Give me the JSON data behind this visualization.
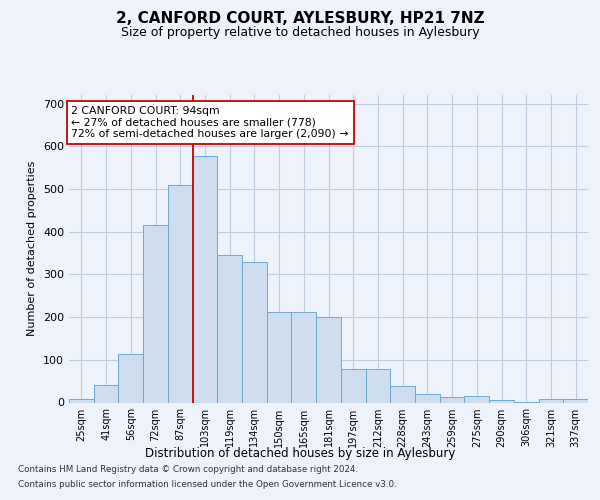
{
  "title_line1": "2, CANFORD COURT, AYLESBURY, HP21 7NZ",
  "title_line2": "Size of property relative to detached houses in Aylesbury",
  "xlabel": "Distribution of detached houses by size in Aylesbury",
  "ylabel": "Number of detached properties",
  "categories": [
    "25sqm",
    "41sqm",
    "56sqm",
    "72sqm",
    "87sqm",
    "103sqm",
    "119sqm",
    "134sqm",
    "150sqm",
    "165sqm",
    "181sqm",
    "197sqm",
    "212sqm",
    "228sqm",
    "243sqm",
    "259sqm",
    "275sqm",
    "290sqm",
    "306sqm",
    "321sqm",
    "337sqm"
  ],
  "values": [
    8,
    40,
    113,
    415,
    510,
    578,
    345,
    330,
    213,
    211,
    200,
    78,
    78,
    38,
    20,
    13,
    15,
    5,
    1,
    8,
    8
  ],
  "bar_color": "#cfddf0",
  "bar_edge_color": "#6aaad4",
  "annotation_line1": "2 CANFORD COURT: 94sqm",
  "annotation_line2": "← 27% of detached houses are smaller (778)",
  "annotation_line3": "72% of semi-detached houses are larger (2,090) →",
  "vertical_line_index": 4.5,
  "ylim": [
    0,
    720
  ],
  "yticks": [
    0,
    100,
    200,
    300,
    400,
    500,
    600,
    700
  ],
  "footer_line1": "Contains HM Land Registry data © Crown copyright and database right 2024.",
  "footer_line2": "Contains public sector information licensed under the Open Government Licence v3.0.",
  "background_color": "#eef2fa",
  "grid_color": "#c0cce0"
}
